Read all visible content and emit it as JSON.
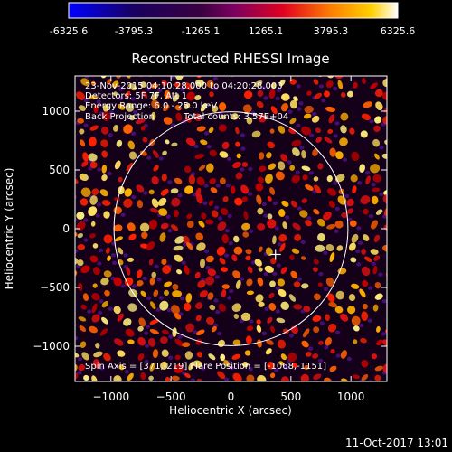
{
  "window": {
    "title": "Reconstructed RHESSI Image",
    "footer_date": "11-Oct-2017 13:01"
  },
  "colorbar": {
    "tick_labels": [
      "-6325.6",
      "-3795.3",
      "-1265.1",
      "1265.1",
      "3795.3",
      "6325.6"
    ],
    "min": -6325.6,
    "max": 6325.6
  },
  "overlay": {
    "line1": "23-Nov-2015 04:10:28.000 to 04:20:28.000",
    "line2": "Detectors: 5F 7F, Att 1",
    "line3": "Energy Range: 6.0 - 25.0 keV",
    "line4_left": "Back Projection",
    "line4_right": "Total counts: 3.57E+04",
    "bottom": "Spin Axis = [371,-219]  Flare Position = [-1068,-1151]"
  },
  "chart_data": {
    "type": "heatmap",
    "title": "Reconstructed RHESSI Image",
    "xlabel": "Heliocentric X (arcsec)",
    "ylabel": "Heliocentric Y (arcsec)",
    "xlim": [
      -1300,
      1300
    ],
    "ylim": [
      -1300,
      1300
    ],
    "x_ticks": [
      -1000,
      -500,
      0,
      500,
      1000
    ],
    "y_ticks": [
      -1000,
      -500,
      0,
      500,
      1000
    ],
    "x_tick_labels": [
      "−1000",
      "−500",
      "0",
      "500",
      "1000"
    ],
    "y_tick_labels": [
      "−1000",
      "−500",
      "0",
      "500",
      "1000"
    ],
    "solar_limb_radius": 975,
    "spin_axis": [
      371,
      -219
    ],
    "color_scale": [
      "#0000ff",
      "#000000",
      "#800080",
      "#ff0000",
      "#ffa500",
      "#ffffff"
    ]
  }
}
